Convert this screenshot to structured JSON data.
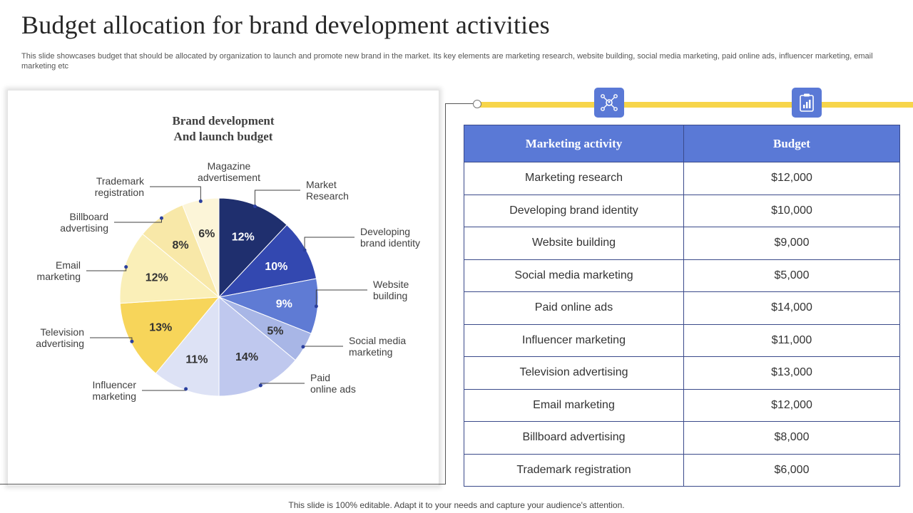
{
  "page": {
    "title": "Budget allocation  for brand development  activities",
    "subtitle": "This slide showcases budget that should be allocated by organization to launch and promote new brand in the market. Its key elements are marketing research, website building, social media marketing, paid online ads, influencer marketing, email marketing etc",
    "footer": "This slide is 100% editable. Adapt it to your needs and capture your audience's attention."
  },
  "icons": [
    {
      "name": "network-people-icon"
    },
    {
      "name": "clipboard-chart-icon"
    }
  ],
  "colors": {
    "accent_blue": "#5a79d6",
    "accent_yellow": "#f7d54a",
    "border": "#3a4a8a"
  },
  "chart_data": {
    "type": "pie",
    "title": "Brand development\nAnd launch budget",
    "slices": [
      {
        "label": "Market\nResearch",
        "value": 12,
        "data_label": "12%",
        "color": "#1f2f6e",
        "text_color": "#ffffff"
      },
      {
        "label": "Developing\nbrand identity",
        "value": 10,
        "data_label": "10%",
        "color": "#3348b0",
        "text_color": "#ffffff"
      },
      {
        "label": "Website\nbuilding",
        "value": 9,
        "data_label": "9%",
        "color": "#5f7bd4",
        "text_color": "#ffffff"
      },
      {
        "label": "Social media\nmarketing",
        "value": 5,
        "data_label": "5%",
        "color": "#a8b6e6",
        "text_color": "#333333"
      },
      {
        "label": "Paid\nonline ads",
        "value": 14,
        "data_label": "14%",
        "color": "#bfc8ee",
        "text_color": "#333333"
      },
      {
        "label": "Influencer\nmarketing",
        "value": 11,
        "data_label": "11%",
        "color": "#dde2f5",
        "text_color": "#333333"
      },
      {
        "label": "Television\nadvertising",
        "value": 13,
        "data_label": "13%",
        "color": "#f7d55a",
        "text_color": "#333333"
      },
      {
        "label": "Email\nmarketing",
        "value": 12,
        "data_label": "12%",
        "color": "#faefb8",
        "text_color": "#333333"
      },
      {
        "label": "Billboard\nadvertising",
        "value": 8,
        "data_label": "8%",
        "color": "#f8e8a8",
        "text_color": "#333333"
      },
      {
        "label": "Trademark\nregistration",
        "value": 6,
        "data_label": "6%",
        "color": "#fcf5d8",
        "text_color": "#333333"
      }
    ],
    "extra_labels": [
      {
        "label": "Magazine\nadvertisement"
      }
    ]
  },
  "table": {
    "headers": [
      "Marketing activity",
      "Budget"
    ],
    "rows": [
      [
        "Marketing research",
        "$12,000"
      ],
      [
        "Developing brand identity",
        "$10,000"
      ],
      [
        "Website building",
        "$9,000"
      ],
      [
        "Social media marketing",
        "$5,000"
      ],
      [
        "Paid online ads",
        "$14,000"
      ],
      [
        "Influencer  marketing",
        "$11,000"
      ],
      [
        "Television advertising",
        "$13,000"
      ],
      [
        "Email marketing",
        "$12,000"
      ],
      [
        "Billboard advertising",
        "$8,000"
      ],
      [
        "Trademark registration",
        "$6,000"
      ]
    ]
  }
}
